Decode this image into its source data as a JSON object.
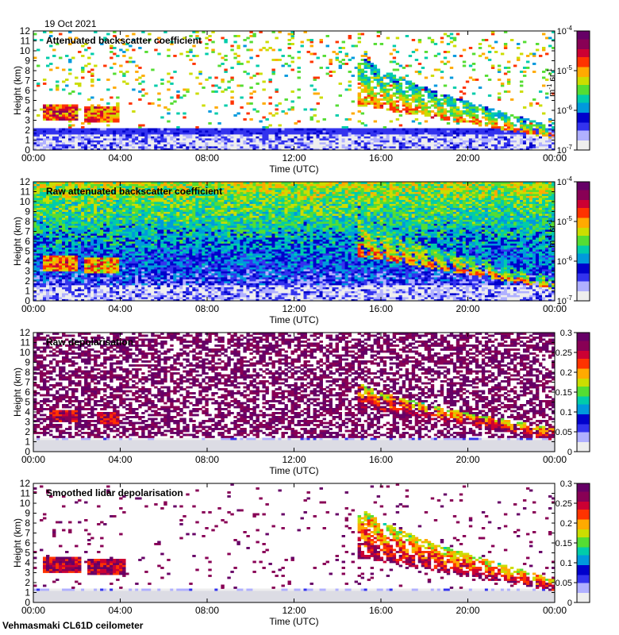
{
  "figure": {
    "date": "19 Oct 2021",
    "footer": "Vehmasmaki CL61D ceilometer"
  },
  "colors": {
    "colormap": [
      "#eeeeee",
      "#b0b0ff",
      "#3333ee",
      "#0000cc",
      "#0099dd",
      "#00ccaa",
      "#55dd33",
      "#ccdd00",
      "#ffaa00",
      "#ff3300",
      "#cc0033",
      "#880055",
      "#660066"
    ],
    "nodata": "#ffffff"
  },
  "chart_data": [
    {
      "type": "heatmap",
      "title": "Attenuated backscatter coefficient",
      "xlabel": "Time (UTC)",
      "ylabel": "Height (km)",
      "xticks": [
        "00:00",
        "04:00",
        "08:00",
        "12:00",
        "16:00",
        "20:00",
        "00:00"
      ],
      "xlim": [
        0,
        24
      ],
      "ylim": [
        0,
        12
      ],
      "yticks": [
        "0",
        "1",
        "2",
        "3",
        "4",
        "5",
        "6",
        "7",
        "8",
        "9",
        "10",
        "11",
        "12"
      ],
      "colorbar": {
        "scale": "log",
        "range": [
          1e-07,
          0.0001
        ],
        "labels": [
          {
            "base": "10",
            "exp": "-7"
          },
          {
            "base": "10",
            "exp": "-6"
          },
          {
            "base": "10",
            "exp": "-5"
          },
          {
            "base": "10",
            "exp": "-4"
          }
        ],
        "unit": {
          "a": "m",
          "a_exp": "-1",
          "b": "sr",
          "b_exp": "-1"
        }
      },
      "features": [
        {
          "name": "boundary layer",
          "t": [
            0,
            24
          ],
          "h": [
            0,
            1.6
          ],
          "level": 0.1
        },
        {
          "name": "cloud 1",
          "t": [
            0.5,
            2.0
          ],
          "h": [
            3.0,
            4.5
          ],
          "level": 0.75
        },
        {
          "name": "cloud 2",
          "t": [
            2.3,
            4.0
          ],
          "h": [
            2.8,
            4.4
          ],
          "level": 0.7
        },
        {
          "name": "descending cloud",
          "t": [
            15.0,
            24.0
          ],
          "h_top": [
            9.8,
            2.4
          ],
          "h_base": [
            4.5,
            1.2
          ],
          "level": 0.7
        }
      ]
    },
    {
      "type": "heatmap",
      "title": "Raw attenuated backscatter coefficient",
      "xlabel": "Time (UTC)",
      "ylabel": "Height (km)",
      "xticks": [
        "00:00",
        "04:00",
        "08:00",
        "12:00",
        "16:00",
        "20:00",
        "00:00"
      ],
      "xlim": [
        0,
        24
      ],
      "ylim": [
        0,
        12
      ],
      "yticks": [
        "0",
        "1",
        "2",
        "3",
        "4",
        "5",
        "6",
        "7",
        "8",
        "9",
        "10",
        "11",
        "12"
      ],
      "colorbar": {
        "scale": "log",
        "range": [
          1e-07,
          0.0001
        ],
        "labels": [
          {
            "base": "10",
            "exp": "-7"
          },
          {
            "base": "10",
            "exp": "-6"
          },
          {
            "base": "10",
            "exp": "-5"
          },
          {
            "base": "10",
            "exp": "-4"
          }
        ],
        "unit": {
          "a": "m",
          "a_exp": "-1",
          "b": "sr",
          "b_exp": "-1"
        }
      },
      "features": [
        {
          "name": "boundary layer",
          "t": [
            0,
            24
          ],
          "h": [
            0,
            1.6
          ],
          "level": 0.1
        },
        {
          "name": "cloud 1",
          "t": [
            0.5,
            2.0
          ],
          "h": [
            3.0,
            4.5
          ],
          "level": 0.7
        },
        {
          "name": "cloud 2",
          "t": [
            2.3,
            4.0
          ],
          "h": [
            2.8,
            4.4
          ],
          "level": 0.65
        },
        {
          "name": "descending cloud",
          "t": [
            15.0,
            24.0
          ],
          "h_top": [
            9.5,
            2.4
          ],
          "h_base": [
            4.5,
            1.2
          ],
          "level": 0.7
        }
      ]
    },
    {
      "type": "heatmap",
      "title": "Raw depolarisation",
      "xlabel": "Time (UTC)",
      "ylabel": "Height (km)",
      "xticks": [
        "00:00",
        "04:00",
        "08:00",
        "12:00",
        "16:00",
        "20:00",
        "00:00"
      ],
      "xlim": [
        0,
        24
      ],
      "ylim": [
        0,
        12
      ],
      "yticks": [
        "0",
        "1",
        "2",
        "3",
        "4",
        "5",
        "6",
        "7",
        "8",
        "9",
        "10",
        "11",
        "12"
      ],
      "colorbar": {
        "scale": "linear",
        "range": [
          0,
          0.3
        ],
        "labels": [
          "0",
          "0.05",
          "0.1",
          "0.15",
          "0.2",
          "0.25",
          "0.3"
        ]
      },
      "features": [
        {
          "name": "boundary layer",
          "t": [
            0,
            24
          ],
          "h": [
            0,
            1.4
          ],
          "level": 0.05
        },
        {
          "name": "cloud 1",
          "t": [
            0.8,
            2.0
          ],
          "h": [
            3.0,
            4.2
          ],
          "level": 0.85
        },
        {
          "name": "cloud 2",
          "t": [
            3.0,
            4.0
          ],
          "h": [
            2.8,
            4.0
          ],
          "level": 0.85
        },
        {
          "name": "descending cloud",
          "t": [
            15.0,
            24.0
          ],
          "h_top": [
            7.0,
            2.4
          ],
          "h_base": [
            4.5,
            1.2
          ],
          "level": 0.9
        }
      ]
    },
    {
      "type": "heatmap",
      "title": "Smoothed lidar depolarisation",
      "xlabel": "Time (UTC)",
      "ylabel": "Height (km)",
      "xticks": [
        "00:00",
        "04:00",
        "08:00",
        "12:00",
        "16:00",
        "20:00",
        "00:00"
      ],
      "xlim": [
        0,
        24
      ],
      "ylim": [
        0,
        12
      ],
      "yticks": [
        "0",
        "1",
        "2",
        "3",
        "4",
        "5",
        "6",
        "7",
        "8",
        "9",
        "10",
        "11",
        "12"
      ],
      "colorbar": {
        "scale": "linear",
        "range": [
          0,
          0.3
        ],
        "labels": [
          "0",
          "0.05",
          "0.1",
          "0.15",
          "0.2",
          "0.25",
          "0.3"
        ]
      },
      "features": [
        {
          "name": "boundary layer",
          "t": [
            0,
            24
          ],
          "h": [
            0,
            1.4
          ],
          "level": 0.05
        },
        {
          "name": "cloud 1",
          "t": [
            0.5,
            2.2
          ],
          "h": [
            3.0,
            4.5
          ],
          "level": 0.85
        },
        {
          "name": "cloud 2",
          "t": [
            2.5,
            4.3
          ],
          "h": [
            2.8,
            4.3
          ],
          "level": 0.85
        },
        {
          "name": "descending cloud",
          "t": [
            15.0,
            24.0
          ],
          "h_top": [
            9.8,
            2.4
          ],
          "h_base": [
            4.5,
            1.2
          ],
          "level": 0.9
        }
      ]
    }
  ]
}
